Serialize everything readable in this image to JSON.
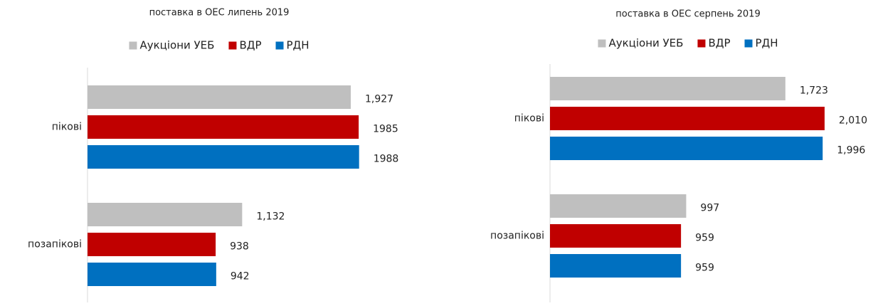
{
  "chart_data": [
    {
      "type": "bar",
      "orientation": "horizontal",
      "title": "поставка в ОЕС липень 2019",
      "categories": [
        "пікові",
        "позапікові"
      ],
      "series": [
        {
          "name": "Аукціони УЕБ",
          "color": "#bfbfbf",
          "values": [
            1927,
            1132
          ],
          "value_labels": [
            "1,927",
            "1,132"
          ]
        },
        {
          "name": "ВДР",
          "color": "#c00000",
          "values": [
            1985,
            938
          ]
        },
        {
          "name": "РДН",
          "color": "#0070c0",
          "values": [
            1988,
            942
          ]
        }
      ],
      "legend": "top"
    },
    {
      "type": "bar",
      "orientation": "horizontal",
      "title": "поставка в ОЕС серпень 2019",
      "categories": [
        "пікові",
        "позапікові"
      ],
      "series": [
        {
          "name": "Аукціони УЕБ",
          "color": "#bfbfbf",
          "values": [
            1723,
            997
          ],
          "value_labels": [
            "1,723",
            "997"
          ]
        },
        {
          "name": "ВДР",
          "color": "#c00000",
          "values": [
            2010,
            959
          ],
          "value_labels": [
            "2,010",
            "959"
          ]
        },
        {
          "name": "РДН",
          "color": "#0070c0",
          "values": [
            1996,
            959
          ],
          "value_labels": [
            "1,996",
            "959"
          ]
        }
      ],
      "legend": "top"
    }
  ]
}
